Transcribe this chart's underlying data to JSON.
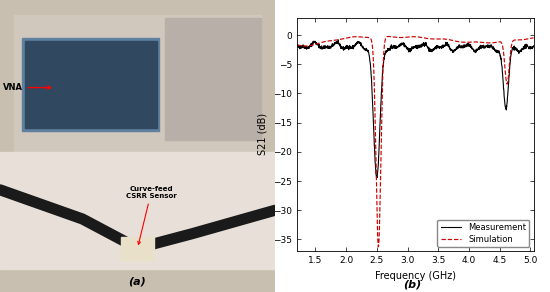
{
  "xlabel": "Frequency (GHz)",
  "ylabel": "S21 (dB)",
  "xlim": [
    1.2,
    5.05
  ],
  "ylim": [
    -37,
    3
  ],
  "xticks": [
    1.5,
    2.0,
    2.5,
    3.0,
    3.5,
    4.0,
    4.5,
    5.0
  ],
  "yticks": [
    0,
    -5,
    -10,
    -15,
    -20,
    -25,
    -30,
    -35
  ],
  "legend_entries": [
    "Measurement",
    "Simulation"
  ],
  "meas_color": "#000000",
  "sim_color": "#cc0000",
  "background_color": "#ffffff",
  "label_a": "(a)",
  "label_b": "(b)",
  "vna_label": "VNA",
  "sensor_label": "Curve-feed\nCSRR Sensor"
}
